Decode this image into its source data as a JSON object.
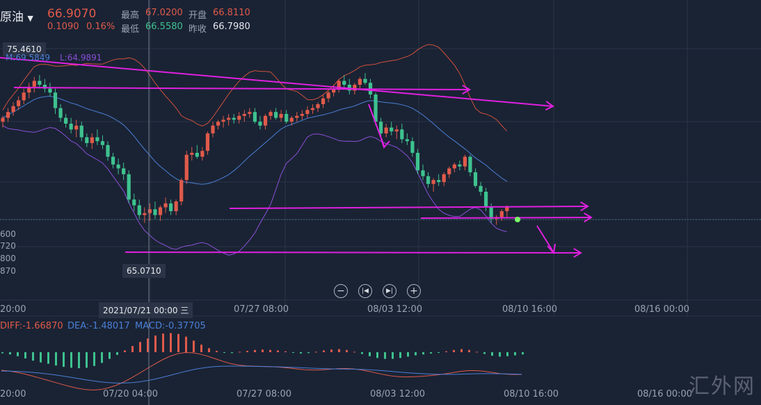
{
  "header": {
    "name": "原油",
    "price": "66.9070",
    "change": "0.1090",
    "change_pct": "0.16%",
    "high_label": "最高",
    "high": "67.0200",
    "open_label": "开盘",
    "open": "66.8110",
    "low_label": "最低",
    "low": "66.5580",
    "prev_label": "昨收",
    "prev": "66.7980"
  },
  "boll_legend": {
    "upper": "75.4610",
    "mid": "M:69.5849",
    "lower": "L:64.9891"
  },
  "price_tags": {
    "low_marker": "65.0710",
    "cursor_date": "2021/07/21 00:00 三"
  },
  "left_axis_labels": [
    "600",
    "720",
    "800",
    "870"
  ],
  "time_labels_main": [
    "20:00",
    "07/27 08:00",
    "08/03 12:00",
    "08/10 16:00",
    "08/16 00:00"
  ],
  "time_labels_macd": [
    "20:00",
    "07/20 04:00",
    "07/27 08:00",
    "08/03 12:00",
    "08/10 16:00",
    "08/16 00:00"
  ],
  "macd_legend": {
    "diff": "DIFF:-1.66870",
    "dea": "DEA:-1.48017",
    "macd": "MACD:-0.37705"
  },
  "controls": [
    "zoom-out",
    "prev",
    "next",
    "zoom-in"
  ],
  "watermark": "汇外网",
  "colors": {
    "up": "#e05a4a",
    "down": "#3ec28f",
    "mid": "#4a7fd6",
    "upper": "#d0503c",
    "lower": "#8a4fd6",
    "trend": "#e020e0"
  },
  "chart_data": {
    "type": "candlestick",
    "title": "原油",
    "price_scale": {
      "top": 75.461,
      "low_marker": 65.071
    },
    "candles": [
      [
        67.6,
        67.9,
        67.3,
        67.8
      ],
      [
        67.8,
        68.3,
        67.6,
        68.1
      ],
      [
        68.1,
        68.6,
        67.9,
        68.4
      ],
      [
        68.4,
        68.9,
        68.2,
        68.7
      ],
      [
        68.7,
        69.3,
        68.5,
        69.1
      ],
      [
        69.1,
        69.6,
        68.8,
        69.4
      ],
      [
        69.4,
        69.9,
        69.1,
        69.7
      ],
      [
        69.7,
        70.0,
        69.3,
        69.5
      ],
      [
        69.5,
        69.8,
        69.1,
        69.3
      ],
      [
        69.3,
        69.6,
        68.9,
        69.1
      ],
      [
        69.1,
        69.3,
        68.0,
        68.3
      ],
      [
        68.3,
        68.5,
        67.6,
        67.8
      ],
      [
        67.8,
        68.0,
        67.3,
        67.5
      ],
      [
        67.5,
        67.8,
        67.0,
        67.2
      ],
      [
        67.2,
        67.7,
        66.8,
        67.4
      ],
      [
        67.4,
        67.6,
        66.6,
        66.8
      ],
      [
        66.8,
        67.0,
        66.3,
        66.5
      ],
      [
        66.5,
        67.0,
        66.2,
        66.8
      ],
      [
        66.8,
        67.2,
        66.4,
        66.6
      ],
      [
        66.6,
        66.9,
        66.2,
        66.4
      ],
      [
        66.4,
        66.6,
        65.6,
        65.8
      ],
      [
        65.8,
        66.0,
        65.2,
        65.4
      ],
      [
        65.4,
        65.7,
        64.9,
        65.2
      ],
      [
        65.2,
        65.5,
        64.6,
        64.9
      ],
      [
        64.9,
        65.1,
        63.4,
        63.6
      ],
      [
        63.6,
        63.9,
        63.0,
        63.3
      ],
      [
        63.3,
        63.6,
        62.6,
        62.8
      ],
      [
        62.8,
        63.2,
        62.4,
        62.9
      ],
      [
        62.9,
        63.4,
        62.5,
        63.1
      ],
      [
        63.1,
        63.5,
        62.6,
        62.8
      ],
      [
        62.8,
        63.3,
        62.5,
        63.2
      ],
      [
        63.2,
        63.7,
        62.9,
        63.4
      ],
      [
        63.4,
        63.6,
        62.8,
        63.0
      ],
      [
        63.0,
        63.6,
        62.8,
        63.5
      ],
      [
        63.5,
        64.7,
        63.3,
        64.6
      ],
      [
        64.6,
        66.1,
        64.4,
        65.9
      ],
      [
        65.9,
        66.3,
        65.6,
        66.0
      ],
      [
        66.0,
        66.4,
        65.7,
        65.8
      ],
      [
        65.8,
        66.3,
        65.6,
        66.1
      ],
      [
        66.1,
        67.1,
        65.9,
        67.0
      ],
      [
        67.0,
        67.6,
        66.8,
        67.4
      ],
      [
        67.4,
        67.7,
        67.2,
        67.6
      ],
      [
        67.6,
        67.9,
        67.3,
        67.7
      ],
      [
        67.7,
        68.0,
        67.4,
        67.8
      ],
      [
        67.8,
        68.0,
        67.5,
        67.7
      ],
      [
        67.7,
        68.1,
        67.5,
        67.9
      ],
      [
        67.9,
        68.2,
        67.6,
        68.0
      ],
      [
        68.0,
        68.3,
        67.8,
        68.1
      ],
      [
        68.1,
        68.3,
        67.5,
        67.6
      ],
      [
        67.6,
        67.9,
        67.2,
        67.4
      ],
      [
        67.4,
        68.0,
        67.2,
        67.9
      ],
      [
        67.9,
        68.2,
        67.7,
        68.1
      ],
      [
        68.1,
        68.3,
        67.7,
        67.8
      ],
      [
        67.8,
        68.2,
        67.6,
        68.0
      ],
      [
        68.0,
        68.2,
        67.5,
        67.6
      ],
      [
        67.6,
        67.9,
        67.4,
        67.8
      ],
      [
        67.8,
        68.1,
        67.6,
        67.9
      ],
      [
        67.9,
        68.2,
        67.7,
        68.0
      ],
      [
        68.0,
        68.4,
        67.8,
        68.2
      ],
      [
        68.2,
        68.5,
        68.0,
        68.3
      ],
      [
        68.3,
        68.6,
        68.1,
        68.5
      ],
      [
        68.5,
        69.0,
        68.3,
        68.8
      ],
      [
        68.8,
        69.2,
        68.6,
        69.1
      ],
      [
        69.1,
        69.5,
        68.9,
        69.3
      ],
      [
        69.3,
        69.8,
        69.1,
        69.7
      ],
      [
        69.7,
        70.0,
        69.3,
        69.5
      ],
      [
        69.5,
        69.8,
        69.0,
        69.2
      ],
      [
        69.2,
        69.6,
        69.0,
        69.5
      ],
      [
        69.5,
        69.9,
        69.3,
        69.8
      ],
      [
        69.8,
        70.1,
        69.5,
        69.6
      ],
      [
        69.6,
        69.8,
        68.8,
        69.0
      ],
      [
        69.0,
        69.1,
        67.4,
        67.6
      ],
      [
        67.6,
        67.8,
        66.8,
        67.0
      ],
      [
        67.0,
        67.5,
        66.8,
        67.3
      ],
      [
        67.3,
        67.6,
        66.9,
        67.1
      ],
      [
        67.1,
        67.4,
        66.7,
        67.2
      ],
      [
        67.2,
        67.5,
        66.5,
        66.7
      ],
      [
        66.7,
        67.0,
        66.4,
        66.6
      ],
      [
        66.6,
        66.8,
        65.8,
        66.0
      ],
      [
        66.0,
        66.2,
        64.9,
        65.1
      ],
      [
        65.1,
        65.4,
        64.6,
        64.8
      ],
      [
        64.8,
        65.0,
        64.2,
        64.4
      ],
      [
        64.4,
        64.7,
        64.0,
        64.6
      ],
      [
        64.6,
        64.9,
        64.3,
        64.5
      ],
      [
        64.5,
        65.0,
        64.3,
        64.9
      ],
      [
        64.9,
        65.3,
        64.7,
        65.2
      ],
      [
        65.2,
        65.5,
        65.0,
        65.4
      ],
      [
        65.4,
        65.6,
        65.1,
        65.3
      ],
      [
        65.3,
        65.9,
        65.1,
        65.8
      ],
      [
        65.8,
        65.9,
        64.8,
        65.0
      ],
      [
        65.0,
        65.2,
        64.2,
        64.3
      ],
      [
        64.3,
        64.5,
        63.8,
        64.0
      ],
      [
        64.0,
        64.2,
        63.0,
        63.2
      ],
      [
        63.2,
        63.4,
        62.4,
        62.6
      ],
      [
        62.6,
        62.8,
        62.3,
        62.7
      ],
      [
        62.7,
        63.1,
        62.5,
        63.0
      ],
      [
        63.0,
        63.3,
        62.7,
        63.2
      ]
    ],
    "macd_hist": [
      -0.05,
      -0.1,
      -0.18,
      -0.28,
      -0.38,
      -0.46,
      -0.52,
      -0.6,
      -0.66,
      -0.7,
      -0.72,
      -0.7,
      -0.62,
      -0.48,
      -0.3,
      -0.12,
      0.08,
      0.28,
      0.46,
      0.62,
      0.75,
      0.84,
      0.86,
      0.82,
      0.7,
      0.52,
      0.34,
      0.18,
      0.06,
      -0.02,
      -0.04,
      0.02,
      0.06,
      0.1,
      0.12,
      0.1,
      0.08,
      0.04,
      -0.02,
      -0.06,
      -0.04,
      0.02,
      0.08,
      0.12,
      0.14,
      0.1,
      0.02,
      -0.08,
      -0.18,
      -0.26,
      -0.3,
      -0.3,
      -0.26,
      -0.2,
      -0.14,
      -0.1,
      -0.06,
      -0.02,
      0.04,
      0.1,
      0.14,
      0.1,
      0.02,
      -0.08,
      -0.16,
      -0.2,
      -0.18,
      -0.14,
      -0.1
    ]
  }
}
